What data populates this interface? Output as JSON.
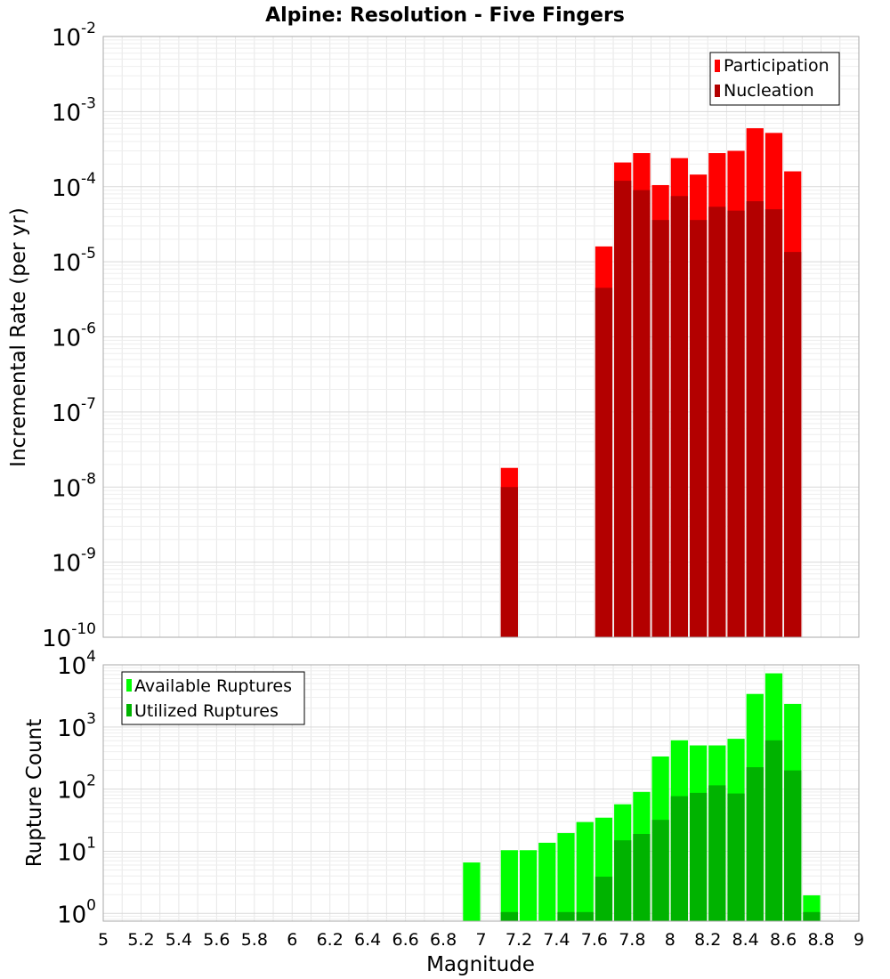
{
  "chart_data": [
    {
      "type": "bar",
      "title": "Alpine: Resolution - Five Fingers",
      "xlabel": "Magnitude",
      "ylabel": "Incremental Rate (per yr)",
      "yscale": "log",
      "ylim": [
        1e-10,
        0.01
      ],
      "xlim": [
        5,
        9
      ],
      "y_ticks": [
        {
          "base": "10",
          "exp": "-10"
        },
        {
          "base": "10",
          "exp": "-9"
        },
        {
          "base": "10",
          "exp": "-8"
        },
        {
          "base": "10",
          "exp": "-7"
        },
        {
          "base": "10",
          "exp": "-6"
        },
        {
          "base": "10",
          "exp": "-5"
        },
        {
          "base": "10",
          "exp": "-4"
        },
        {
          "base": "10",
          "exp": "-3"
        },
        {
          "base": "10",
          "exp": "-2"
        }
      ],
      "grid": true,
      "legend": "top-right",
      "series": [
        {
          "name": "Participation",
          "color": "#ff0000",
          "x": [
            7.15,
            7.65,
            7.75,
            7.85,
            7.95,
            8.05,
            8.15,
            8.25,
            8.35,
            8.45,
            8.55,
            8.65
          ],
          "values": [
            1.8e-08,
            1.6e-05,
            0.00021,
            0.00028,
            0.000105,
            0.00024,
            0.000145,
            0.00028,
            0.0003,
            0.0006,
            0.00052,
            0.00016
          ]
        },
        {
          "name": "Nucleation",
          "color": "#b30000",
          "x": [
            7.15,
            7.65,
            7.75,
            7.85,
            7.95,
            8.05,
            8.15,
            8.25,
            8.35,
            8.45,
            8.55,
            8.65
          ],
          "values": [
            1e-08,
            4.5e-06,
            0.00012,
            9e-05,
            3.6e-05,
            7.5e-05,
            3.6e-05,
            5.4e-05,
            4.8e-05,
            6.4e-05,
            5e-05,
            1.35e-05
          ]
        }
      ]
    },
    {
      "type": "bar",
      "xlabel": "Magnitude",
      "ylabel": "Rupture Count",
      "yscale": "log",
      "ylim": [
        0.75,
        10000
      ],
      "xlim": [
        5,
        9
      ],
      "x_ticks": [
        "5",
        "5.2",
        "5.4",
        "5.6",
        "5.8",
        "6",
        "6.2",
        "6.4",
        "6.6",
        "6.8",
        "7",
        "7.2",
        "7.4",
        "7.6",
        "7.8",
        "8",
        "8.2",
        "8.4",
        "8.6",
        "8.8",
        "9"
      ],
      "y_ticks": [
        {
          "base": "10",
          "exp": "0"
        },
        {
          "base": "10",
          "exp": "1"
        },
        {
          "base": "10",
          "exp": "2"
        },
        {
          "base": "10",
          "exp": "3"
        },
        {
          "base": "10",
          "exp": "4"
        }
      ],
      "grid": true,
      "legend": "top-left",
      "series": [
        {
          "name": "Available Ruptures",
          "color": "#00ff00",
          "x": [
            6.95,
            7.15,
            7.25,
            7.35,
            7.45,
            7.55,
            7.65,
            7.75,
            7.85,
            7.95,
            8.05,
            8.15,
            8.25,
            8.35,
            8.45,
            8.55,
            8.65,
            8.75
          ],
          "values": [
            6.6,
            10.4,
            10.4,
            13.7,
            19.6,
            29.5,
            34.7,
            57.0,
            90.0,
            335,
            610,
            505,
            505,
            645,
            3400,
            7300,
            2350,
            1.95
          ]
        },
        {
          "name": "Utilized Ruptures",
          "color": "#00b300",
          "x": [
            7.15,
            7.45,
            7.55,
            7.65,
            7.75,
            7.85,
            7.95,
            8.05,
            8.15,
            8.25,
            8.35,
            8.45,
            8.55,
            8.65,
            8.75
          ],
          "values": [
            1.05,
            1.05,
            1.05,
            3.9,
            15.0,
            19.0,
            32.0,
            77.0,
            87.0,
            115,
            85.0,
            225,
            610,
            200,
            1.05
          ]
        }
      ]
    }
  ]
}
